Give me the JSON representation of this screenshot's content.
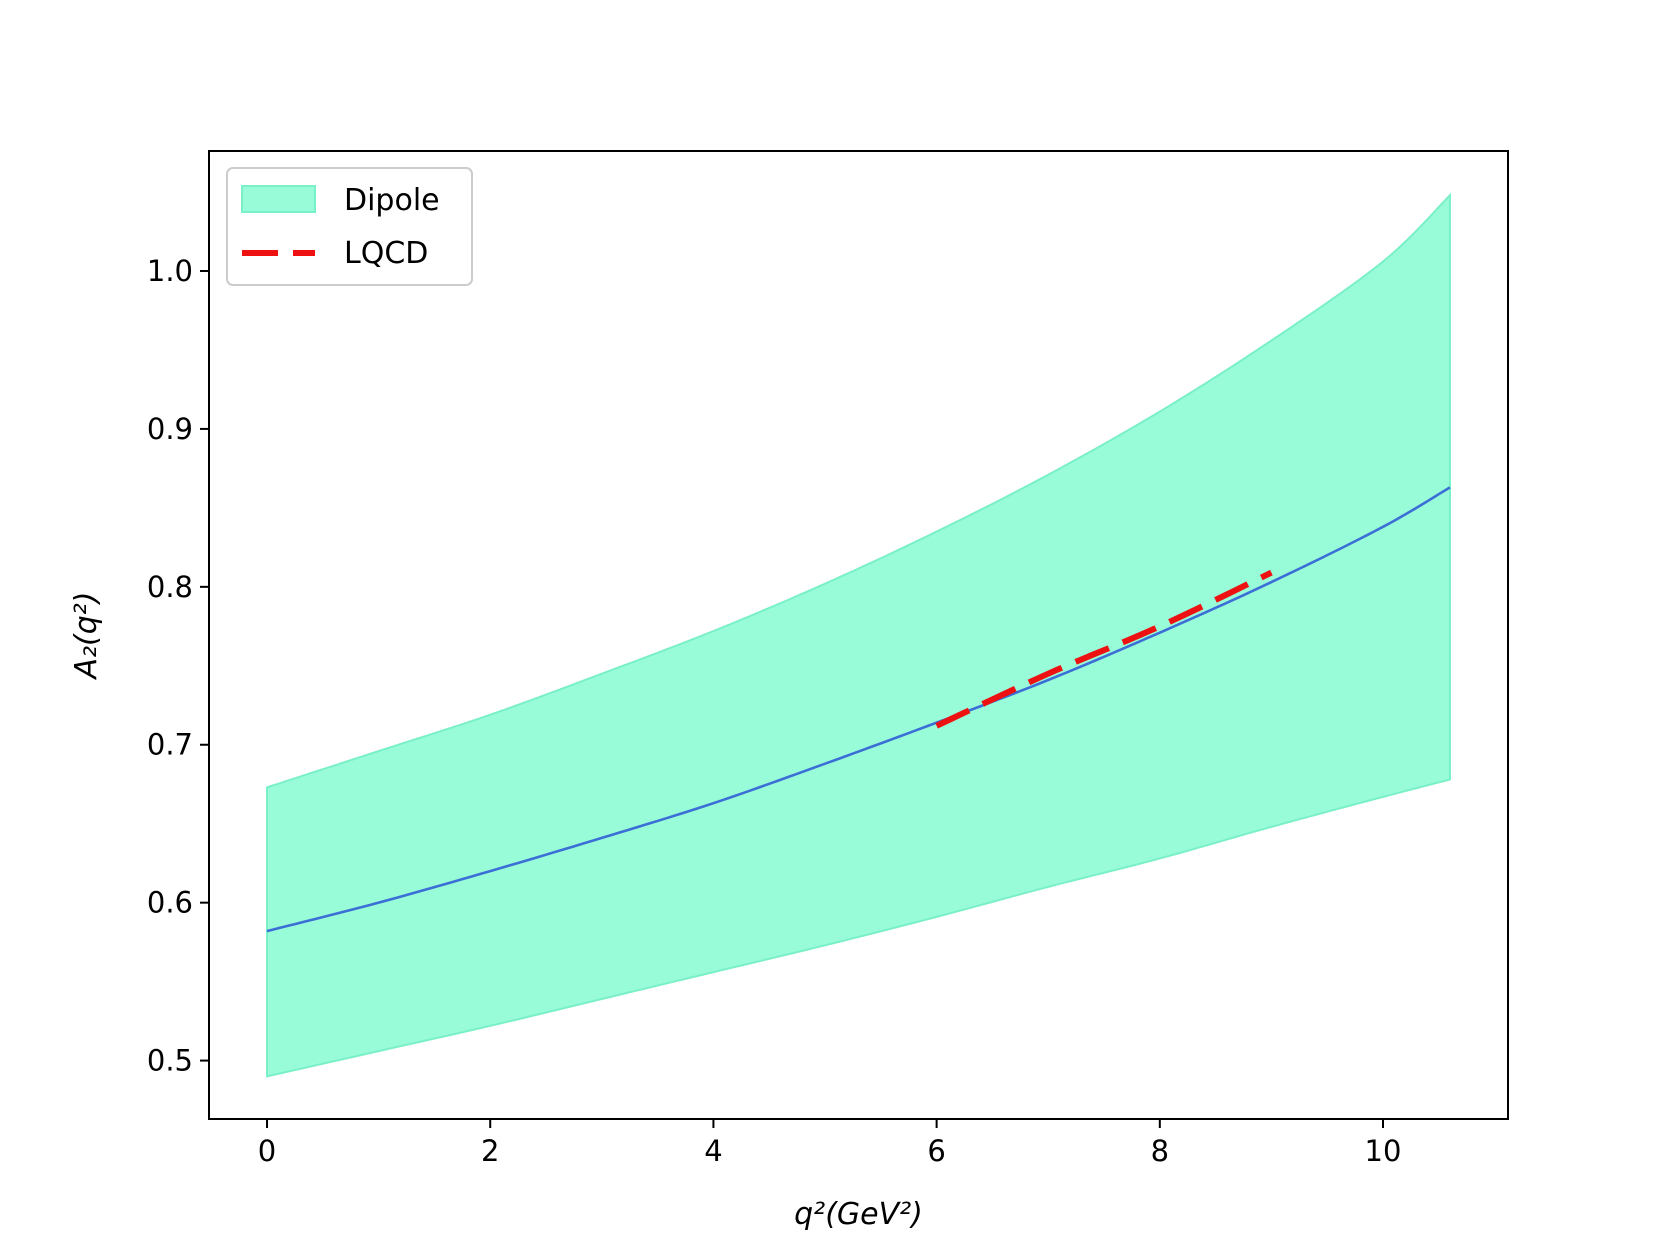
{
  "chart_data": {
    "type": "line",
    "xlabel": "q²(GeV²)",
    "ylabel": "A₂(q²)",
    "xlim": [
      -0.52,
      11.12
    ],
    "ylim": [
      0.463,
      1.076
    ],
    "x_ticks": [
      0,
      2,
      4,
      6,
      8,
      10
    ],
    "y_ticks": [
      0.5,
      0.6,
      0.7,
      0.8,
      0.9,
      1.0
    ],
    "x_tick_labels": [
      "0",
      "2",
      "4",
      "6",
      "8",
      "10"
    ],
    "y_tick_labels": [
      "0.5",
      "0.6",
      "0.7",
      "0.8",
      "0.9",
      "1.0"
    ],
    "grid": false,
    "legend_position": "top-left",
    "series": [
      {
        "name": "Dipole",
        "kind": "band",
        "color": "#99fcd9",
        "edge_color": "#7af0c8",
        "x": [
          0,
          1,
          2,
          3,
          4,
          5,
          6,
          7,
          8,
          9,
          10,
          10.6
        ],
        "lower": [
          0.49,
          0.506,
          0.522,
          0.539,
          0.556,
          0.573,
          0.591,
          0.61,
          0.628,
          0.648,
          0.667,
          0.678
        ],
        "upper": [
          0.673,
          0.696,
          0.719,
          0.745,
          0.772,
          0.802,
          0.835,
          0.871,
          0.911,
          0.956,
          1.006,
          1.048
        ]
      },
      {
        "name": "",
        "kind": "line",
        "color": "#3b6fd6",
        "x": [
          0,
          1,
          2,
          3,
          4,
          5,
          6,
          7,
          8,
          9,
          10,
          10.6
        ],
        "values": [
          0.582,
          0.6,
          0.62,
          0.641,
          0.663,
          0.688,
          0.714,
          0.741,
          0.771,
          0.803,
          0.838,
          0.863
        ]
      },
      {
        "name": "LQCD",
        "kind": "dashed-line",
        "color": "#ee1111",
        "x": [
          6.0,
          7.0,
          8.0,
          9.0
        ],
        "values": [
          0.712,
          0.745,
          0.775,
          0.809
        ]
      }
    ]
  }
}
